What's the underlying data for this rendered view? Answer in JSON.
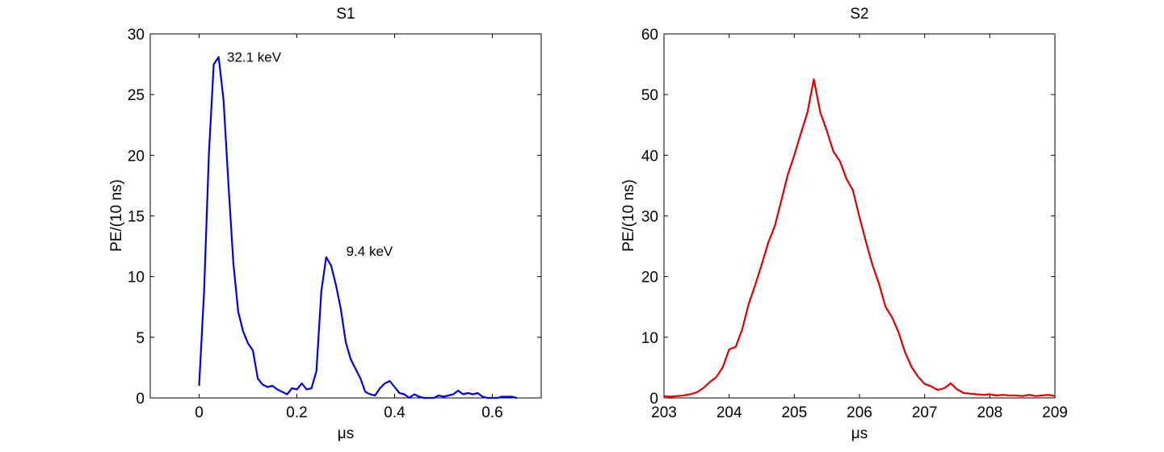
{
  "chart_data": [
    {
      "type": "line",
      "title": "S1",
      "xlabel": "μs",
      "ylabel": "PE/(10 ns)",
      "xlim": [
        -0.1,
        0.7
      ],
      "ylim": [
        0,
        30
      ],
      "xticks": [
        0,
        0.2,
        0.4,
        0.6
      ],
      "xtick_labels": [
        "0",
        "0.2",
        "0.4",
        "0.6"
      ],
      "yticks": [
        0,
        5,
        10,
        15,
        20,
        25,
        30
      ],
      "ytick_labels": [
        "0",
        "5",
        "10",
        "15",
        "20",
        "25",
        "30"
      ],
      "grid": false,
      "color": "#0000e6",
      "series": [
        {
          "x": [
            0.0,
            0.01,
            0.02,
            0.03,
            0.04,
            0.05,
            0.06,
            0.07,
            0.08,
            0.09,
            0.1,
            0.11,
            0.12,
            0.13,
            0.14,
            0.15,
            0.16,
            0.17,
            0.18,
            0.19,
            0.2,
            0.21,
            0.22,
            0.23,
            0.24,
            0.25,
            0.26,
            0.27,
            0.28,
            0.29,
            0.3,
            0.31,
            0.32,
            0.33,
            0.34,
            0.35,
            0.36,
            0.37,
            0.38,
            0.39,
            0.4,
            0.41,
            0.42,
            0.43,
            0.44,
            0.45,
            0.46,
            0.47,
            0.48,
            0.49,
            0.5,
            0.51,
            0.52,
            0.53,
            0.54,
            0.55,
            0.56,
            0.57,
            0.58,
            0.59,
            0.6,
            0.61,
            0.62,
            0.63,
            0.64,
            0.65
          ],
          "y": [
            1.0,
            8.7,
            20.1,
            27.5,
            28.1,
            24.5,
            17.6,
            11.1,
            7.1,
            5.5,
            4.5,
            3.9,
            1.6,
            1.1,
            0.9,
            1.0,
            0.7,
            0.5,
            0.3,
            0.8,
            0.7,
            1.2,
            0.7,
            0.8,
            2.2,
            8.8,
            11.6,
            10.9,
            9.3,
            7.3,
            4.6,
            3.2,
            2.4,
            1.6,
            0.5,
            0.3,
            0.2,
            0.8,
            1.2,
            1.4,
            0.9,
            0.4,
            0.3,
            0.0,
            0.3,
            0.1,
            0.0,
            0.0,
            0.0,
            0.2,
            0.1,
            0.2,
            0.3,
            0.6,
            0.3,
            0.4,
            0.3,
            0.4,
            0.1,
            0.0,
            0.0,
            0.0,
            0.1,
            0.1,
            0.1,
            0.0
          ]
        }
      ],
      "annotations": [
        {
          "text": "32.1 keV",
          "x": 0.057,
          "y": 27.7
        },
        {
          "text": "9.4 keV",
          "x": 0.301,
          "y": 11.7
        }
      ]
    },
    {
      "type": "line",
      "title": "S2",
      "xlabel": "μs",
      "ylabel": "PE/(10 ns)",
      "xlim": [
        203,
        209
      ],
      "ylim": [
        0,
        60
      ],
      "xticks": [
        203,
        204,
        205,
        206,
        207,
        208,
        209
      ],
      "xtick_labels": [
        "203",
        "204",
        "205",
        "206",
        "207",
        "208",
        "209"
      ],
      "yticks": [
        0,
        10,
        20,
        30,
        40,
        50,
        60
      ],
      "ytick_labels": [
        "0",
        "10",
        "20",
        "30",
        "40",
        "50",
        "60"
      ],
      "grid": false,
      "color": "#dd0000",
      "series": [
        {
          "x": [
            203.0,
            203.1,
            203.2,
            203.3,
            203.4,
            203.5,
            203.6,
            203.7,
            203.8,
            203.9,
            204.0,
            204.1,
            204.2,
            204.3,
            204.4,
            204.5,
            204.6,
            204.7,
            204.8,
            204.9,
            205.0,
            205.1,
            205.2,
            205.3,
            205.4,
            205.5,
            205.6,
            205.7,
            205.8,
            205.9,
            206.0,
            206.1,
            206.2,
            206.3,
            206.4,
            206.5,
            206.6,
            206.7,
            206.8,
            206.9,
            207.0,
            207.1,
            207.2,
            207.3,
            207.4,
            207.5,
            207.6,
            207.7,
            207.8,
            207.9,
            208.0,
            208.1,
            208.2,
            208.3,
            208.4,
            208.5,
            208.6,
            208.7,
            208.8,
            208.9,
            209.0
          ],
          "y": [
            0.3,
            0.2,
            0.3,
            0.4,
            0.6,
            0.9,
            1.6,
            2.6,
            3.4,
            5.0,
            8.0,
            8.4,
            11.3,
            15.5,
            18.6,
            22.0,
            25.6,
            28.3,
            32.5,
            36.8,
            40.0,
            43.6,
            47.0,
            52.5,
            47.0,
            44.0,
            40.6,
            39.0,
            36.1,
            34.2,
            29.8,
            25.7,
            21.9,
            18.8,
            15.0,
            13.3,
            10.8,
            7.5,
            5.1,
            3.5,
            2.3,
            1.9,
            1.3,
            1.6,
            2.4,
            1.4,
            0.8,
            0.7,
            0.6,
            0.5,
            0.6,
            0.4,
            0.5,
            0.4,
            0.4,
            0.3,
            0.5,
            0.3,
            0.4,
            0.5,
            0.3
          ]
        }
      ]
    }
  ]
}
